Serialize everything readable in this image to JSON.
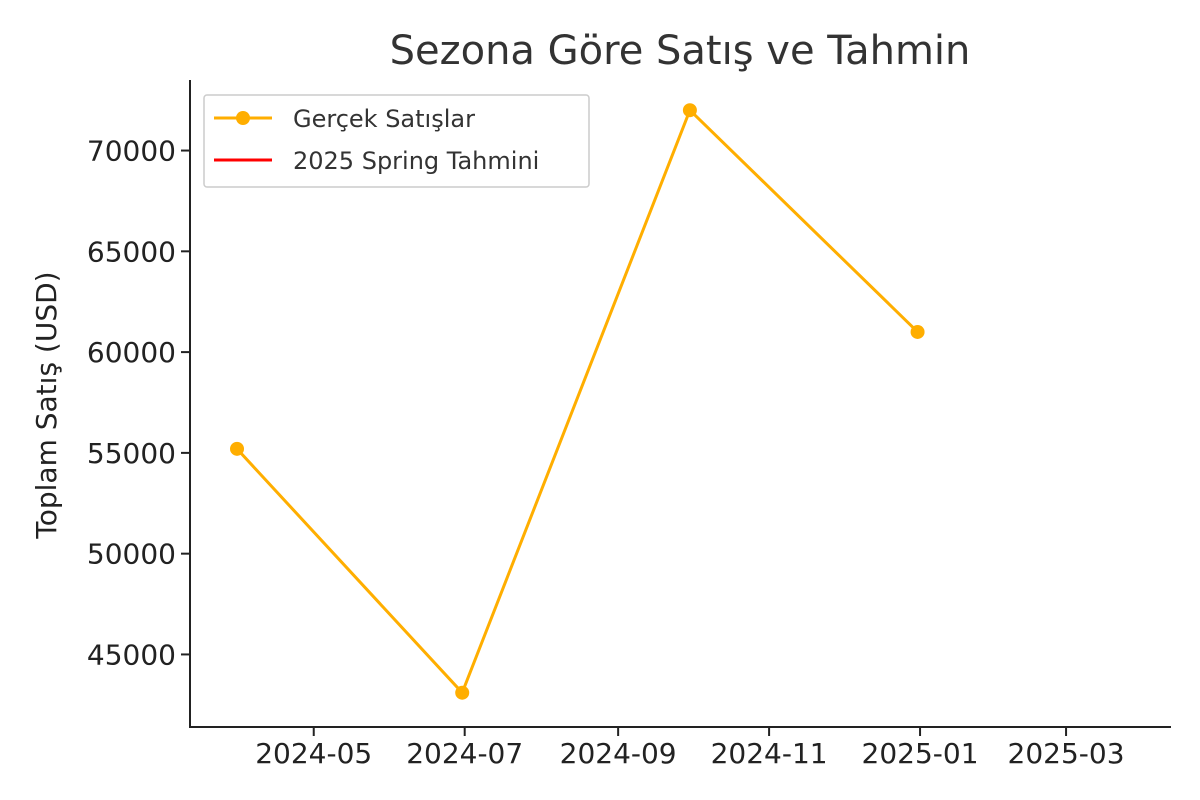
{
  "chart_data": {
    "type": "line",
    "title": "Sezona Göre Satış ve Tahmin",
    "xlabel": "",
    "ylabel": "Toplam Satış (USD)",
    "x_ticks": [
      "2024-05",
      "2024-07",
      "2024-09",
      "2024-11",
      "2025-01",
      "2025-03"
    ],
    "y_ticks": [
      45000,
      50000,
      55000,
      60000,
      65000,
      70000
    ],
    "xlim": [
      "2024-03-12",
      "2025-04-12"
    ],
    "ylim": [
      41400,
      73500
    ],
    "legend_position": "upper-left",
    "grid": false,
    "series": [
      {
        "name": "Gerçek Satışlar",
        "color": "#ffae00",
        "marker": "circle",
        "x": [
          "2024-03-31",
          "2024-06-30",
          "2024-09-30",
          "2024-12-31"
        ],
        "y": [
          55200,
          43100,
          72000,
          61000
        ]
      },
      {
        "name": "2025 Spring Tahmini",
        "color": "#ff0000",
        "marker": "none",
        "x": [],
        "y": []
      }
    ]
  }
}
